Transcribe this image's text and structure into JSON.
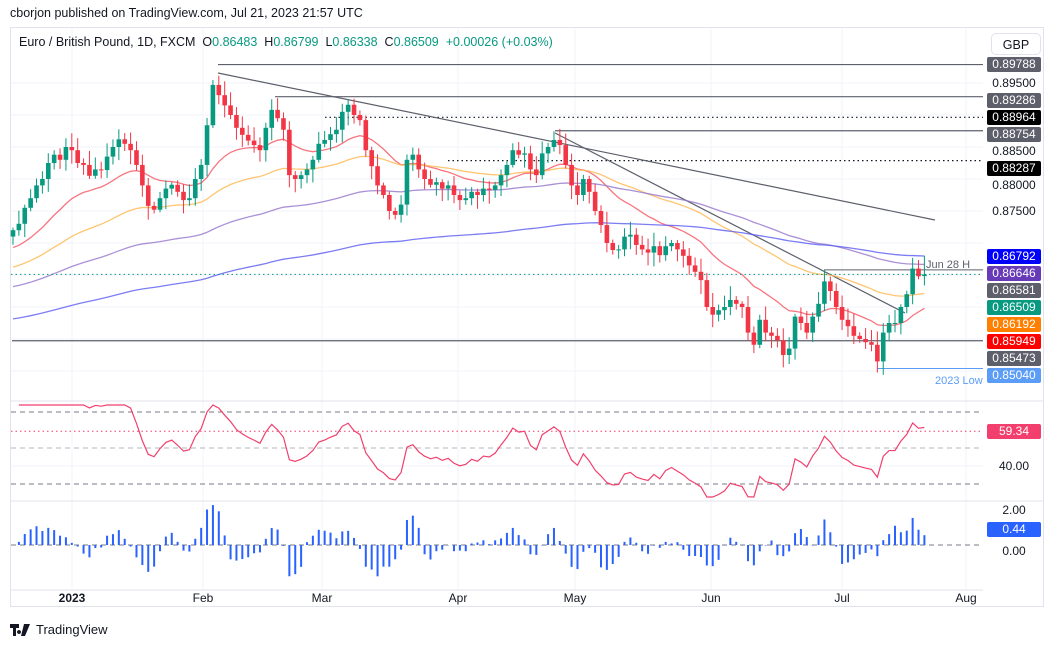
{
  "header": {
    "published": "cborjon published on TradingView.com, Jul 21, 2023 21:57 UTC"
  },
  "legend": {
    "symbol": "Euro / British Pound, 1D, FXCM",
    "o_label": "O",
    "o": "0.86483",
    "h_label": "H",
    "h": "0.86799",
    "l_label": "L",
    "l": "0.86338",
    "c_label": "C",
    "c": "0.86509",
    "change": "+0.00026 (+0.03%)"
  },
  "currency_button": "GBP",
  "brand": "TradingView",
  "colors": {
    "up": "#089981",
    "down": "#f23645",
    "ma20": "#f7525f",
    "ma50": "#ffb74d",
    "ma100": "#9575cd",
    "ma200": "#5b5bf0",
    "rsi": "#f23f6d",
    "histogram": "#2962ff"
  },
  "chart_data": {
    "type": "candlestick",
    "x_ticks": [
      "2023",
      "Feb",
      "Mar",
      "Apr",
      "May",
      "Jun",
      "Jul",
      "Aug"
    ],
    "closes": [
      0.872,
      0.873,
      0.8755,
      0.877,
      0.879,
      0.88,
      0.8825,
      0.8838,
      0.883,
      0.885,
      0.8845,
      0.8825,
      0.8822,
      0.8805,
      0.8815,
      0.8814,
      0.8835,
      0.885,
      0.8862,
      0.8855,
      0.8845,
      0.8822,
      0.879,
      0.8758,
      0.8752,
      0.877,
      0.8785,
      0.8791,
      0.878,
      0.8767,
      0.877,
      0.88,
      0.8822,
      0.8884,
      0.8947,
      0.8931,
      0.8915,
      0.89,
      0.888,
      0.8869,
      0.886,
      0.8853,
      0.8845,
      0.888,
      0.8908,
      0.8895,
      0.8877,
      0.8806,
      0.88,
      0.8806,
      0.8815,
      0.883,
      0.8855,
      0.8861,
      0.887,
      0.8877,
      0.8905,
      0.8916,
      0.89,
      0.8892,
      0.8845,
      0.882,
      0.879,
      0.8775,
      0.875,
      0.8744,
      0.876,
      0.883,
      0.8838,
      0.8815,
      0.88,
      0.8791,
      0.8795,
      0.8785,
      0.879,
      0.8775,
      0.8767,
      0.877,
      0.878,
      0.8775,
      0.8785,
      0.8783,
      0.879,
      0.8806,
      0.8822,
      0.8845,
      0.8838,
      0.884,
      0.8815,
      0.8806,
      0.884,
      0.885,
      0.8861,
      0.8853,
      0.8822,
      0.879,
      0.8775,
      0.88,
      0.878,
      0.875,
      0.8728,
      0.87,
      0.8689,
      0.869,
      0.871,
      0.8713,
      0.8697,
      0.869,
      0.8685,
      0.8695,
      0.8681,
      0.8695,
      0.87,
      0.869,
      0.868,
      0.8665,
      0.8655,
      0.8642,
      0.86,
      0.8588,
      0.8595,
      0.86,
      0.8611,
      0.8605,
      0.86,
      0.856,
      0.8541,
      0.858,
      0.856,
      0.8555,
      0.8548,
      0.8525,
      0.8535,
      0.8585,
      0.8575,
      0.856,
      0.8585,
      0.8605,
      0.864,
      0.8625,
      0.86,
      0.858,
      0.857,
      0.8555,
      0.855,
      0.8545,
      0.8541,
      0.8515,
      0.856,
      0.8575,
      0.8575,
      0.86,
      0.862,
      0.866,
      0.8648,
      0.86509
    ],
    "last_bar": {
      "open": 0.86483,
      "high": 0.86799,
      "low": 0.86338,
      "close": 0.86509
    },
    "price_axis": {
      "range": [
        0.848,
        0.9
      ],
      "ticks": [
        "0.89500",
        "0.88500",
        "0.88000",
        "0.87500"
      ]
    },
    "price_labels": [
      {
        "value": "0.89788",
        "color": "#5d606b"
      },
      {
        "value": "0.89286",
        "color": "#5d606b"
      },
      {
        "value": "0.88964",
        "color": "#000000"
      },
      {
        "value": "0.88754",
        "color": "#5d606b"
      },
      {
        "value": "0.88287",
        "color": "#000000"
      },
      {
        "value": "0.86792",
        "color": "#0000ff"
      },
      {
        "value": "0.86646",
        "color": "#673ab7"
      },
      {
        "value": "0.86581",
        "color": "#5d606b"
      },
      {
        "value": "0.86509",
        "color": "#089981"
      },
      {
        "value": "0.86192",
        "color": "#ff7f00"
      },
      {
        "value": "0.85949",
        "color": "#ff0000"
      },
      {
        "value": "0.85473",
        "color": "#5d606b"
      },
      {
        "value": "0.85040",
        "color": "#5b9cf6"
      }
    ],
    "annotations": {
      "jun28": "Jun 28 H",
      "low2023": "2023 Low"
    },
    "rsi": {
      "value": "59.34",
      "tick": "40.00",
      "levels": [
        70,
        50,
        30
      ],
      "range": [
        30,
        70
      ]
    },
    "histogram": {
      "value": "0.44",
      "ticks": [
        "2.00",
        "0.00"
      ]
    }
  }
}
